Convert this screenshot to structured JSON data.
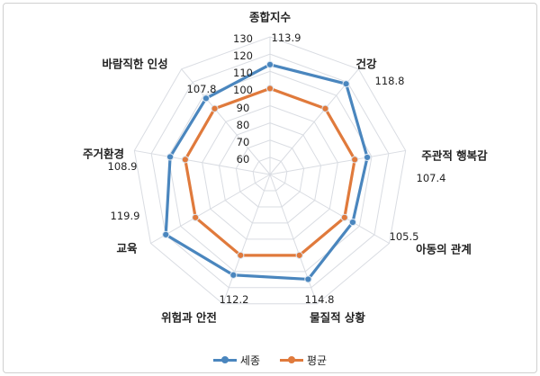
{
  "chart_data": {
    "type": "radar",
    "categories": [
      "종합지수",
      "건강",
      "주관적 행복감",
      "아동의 관계",
      "물질적 상황",
      "위험과 안전",
      "교육",
      "주거환경",
      "바람직한 인성"
    ],
    "series": [
      {
        "name": "세종",
        "values": [
          113.9,
          118.8,
          107.4,
          105.5,
          114.8,
          112.2,
          119.9,
          108.9,
          107.8
        ],
        "color": "#4a86be",
        "data_labels": [
          "113.9",
          "118.8",
          "107.4",
          "105.5",
          "114.8",
          "112.2",
          "119.9",
          "108.9",
          "107.8"
        ]
      },
      {
        "name": "평균",
        "values": [
          100,
          100,
          100,
          100,
          100,
          100,
          100,
          100,
          100
        ],
        "color": "#e07a3c"
      }
    ],
    "axis": {
      "range": [
        50,
        130
      ],
      "ticks": [
        "60",
        "70",
        "80",
        "90",
        "100",
        "110",
        "120",
        "130"
      ]
    },
    "grid": true,
    "legend": "bottom",
    "title": ""
  }
}
